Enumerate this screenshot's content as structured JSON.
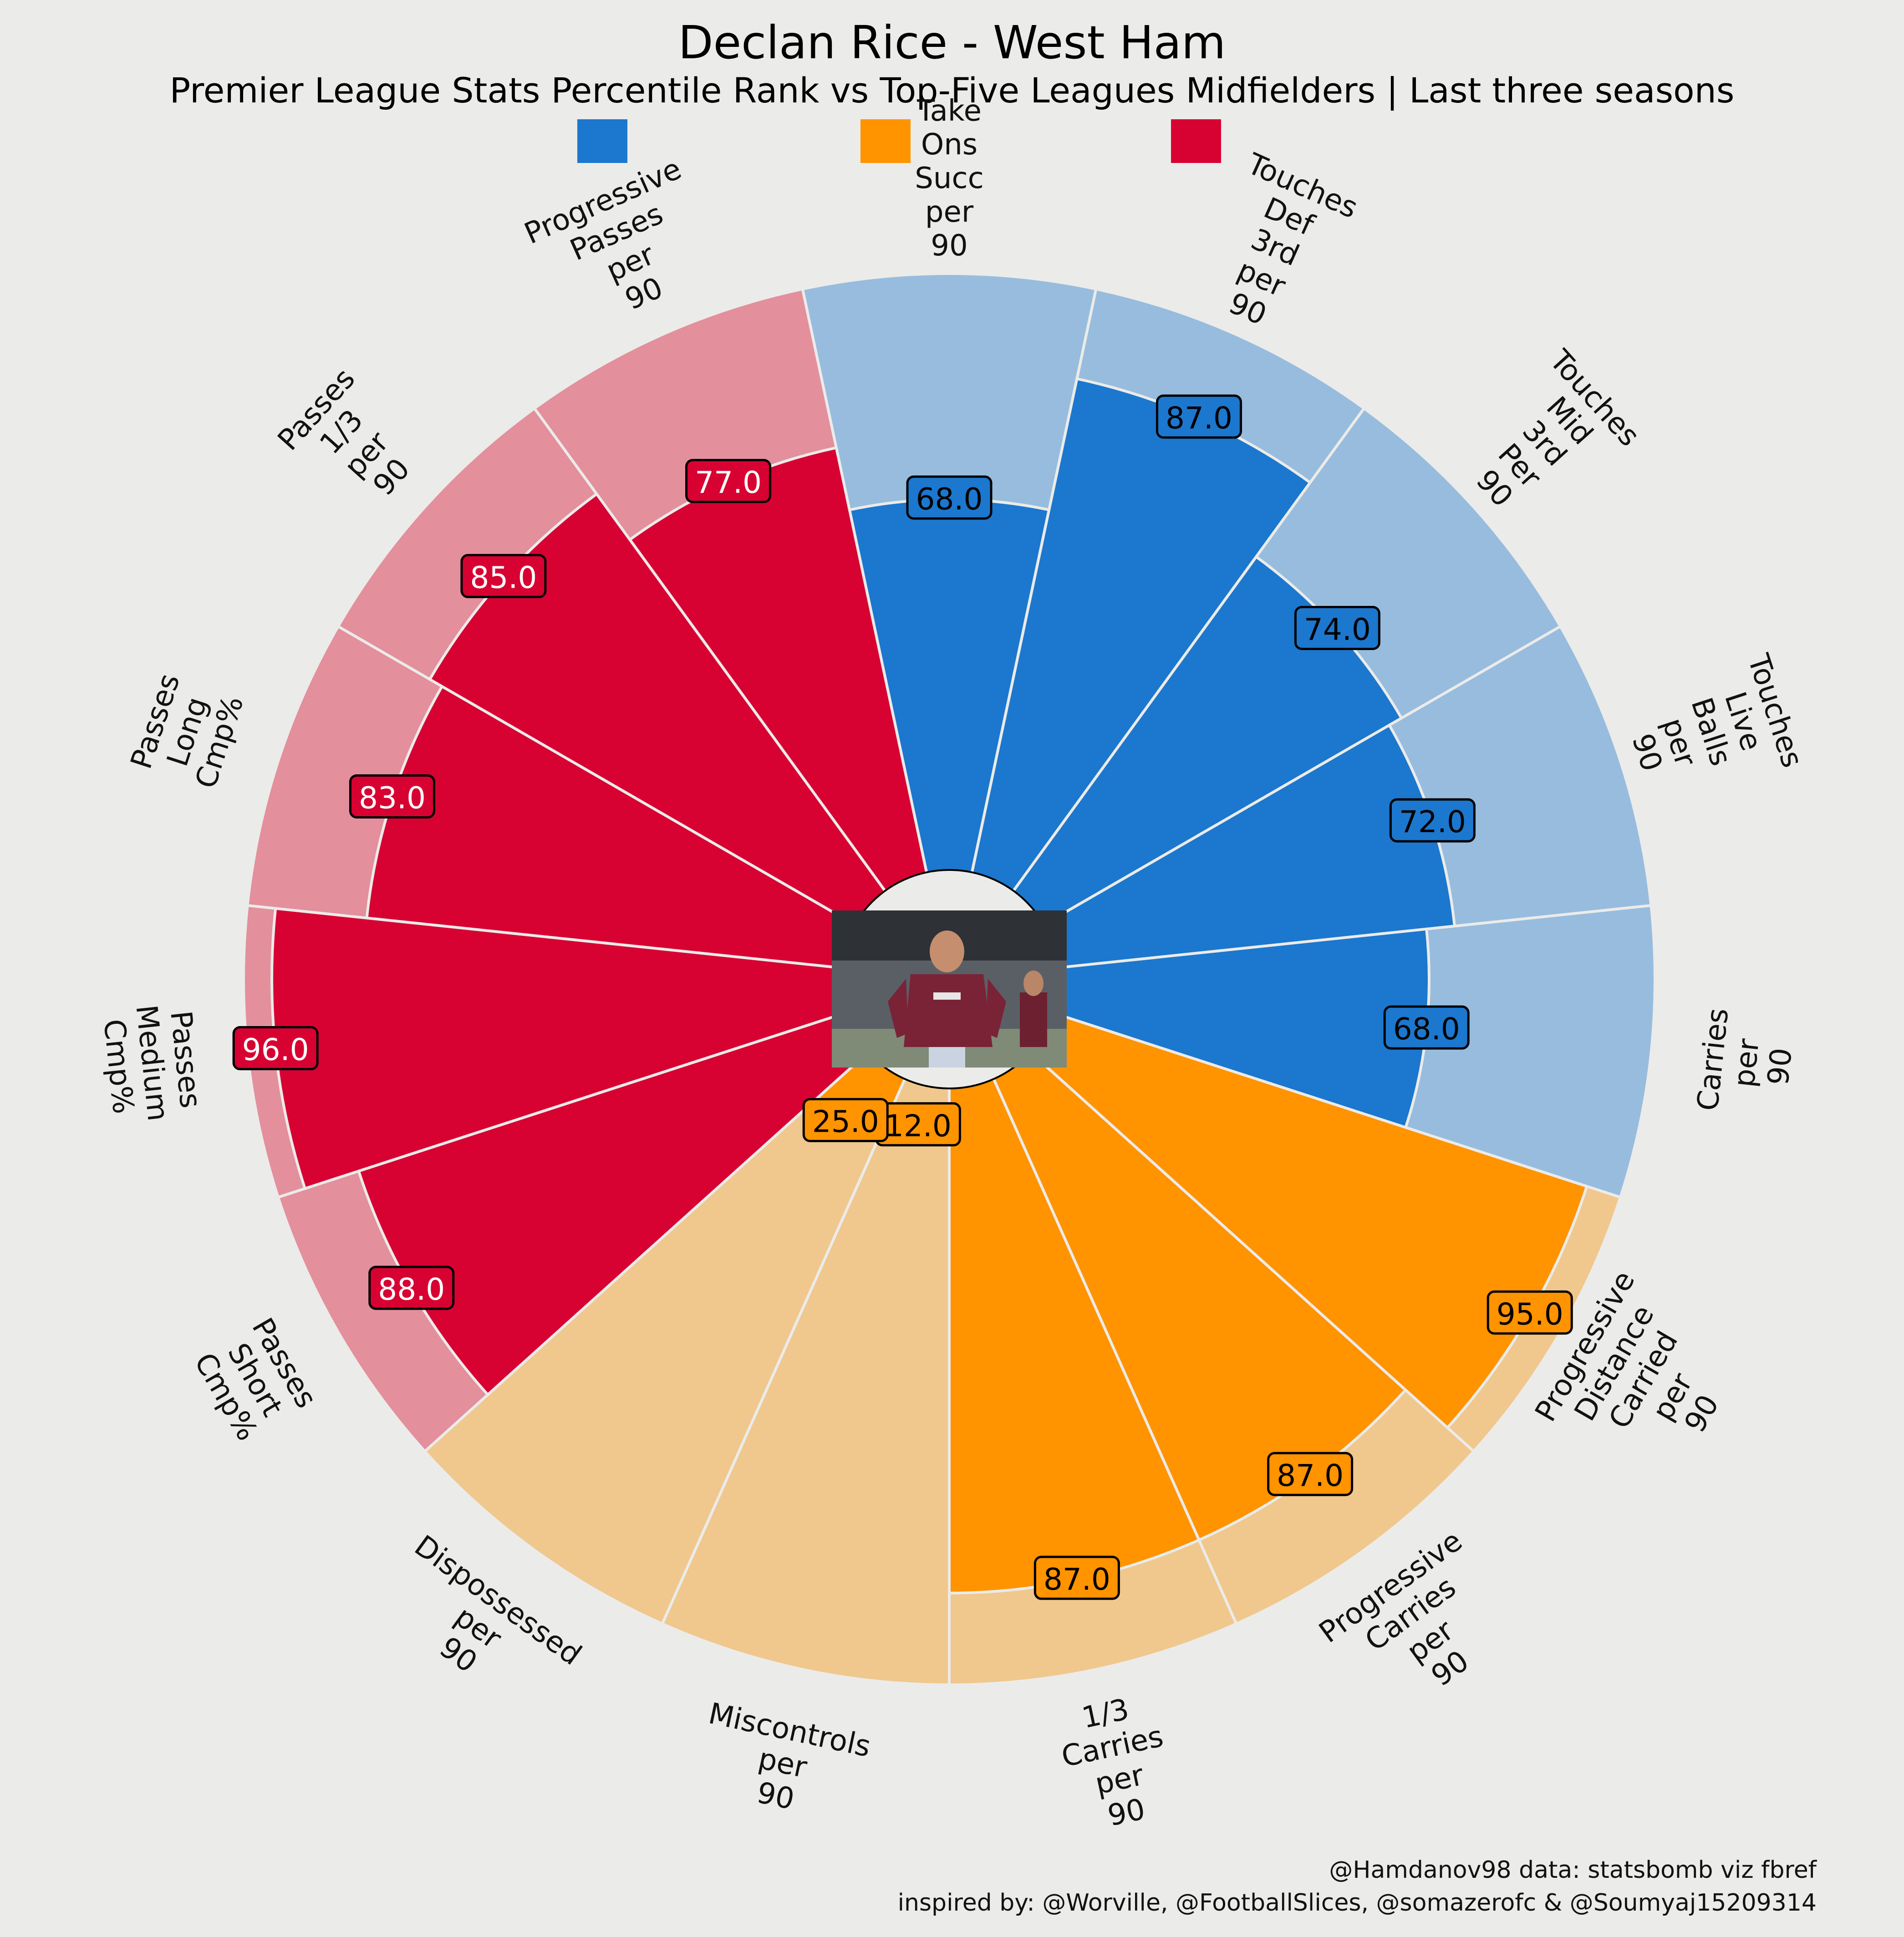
{
  "header": {
    "title": "Declan Rice - West Ham",
    "subtitle": "Premier League Stats Percentile Rank vs Top-Five Leagues Midfielders | Last three seasons"
  },
  "credits": {
    "line1": "@Hamdanov98 data: statsbomb viz fbref",
    "line2": "inspired by: @Worville, @FootballSlices, @somazerofc & @Soumyaj15209314"
  },
  "colors": {
    "background": "#EBEBE9",
    "blue": "#1C77CE",
    "blue_light": "#97BCDE",
    "orange": "#FF9300",
    "orange_light": "#F0C78D",
    "red": "#D70232",
    "red_light": "#E38F9C"
  },
  "center_image": {
    "icon": "player-photo"
  },
  "legend": [
    {
      "color": "#1C77CE",
      "label": ""
    },
    {
      "color": "#FF9300",
      "label": ""
    },
    {
      "color": "#D70232",
      "label": ""
    }
  ],
  "chart_data": {
    "type": "radial-bar",
    "value_range": [
      0,
      100
    ],
    "params": [
      {
        "label": "Take Ons Succ per 90",
        "value": 68.0,
        "group": "blue"
      },
      {
        "label": "Touches Def 3rd per 90",
        "value": 87.0,
        "group": "blue"
      },
      {
        "label": "Touches Mid 3rd Per 90",
        "value": 74.0,
        "group": "blue"
      },
      {
        "label": "Touches Live Balls per 90",
        "value": 72.0,
        "group": "blue"
      },
      {
        "label": "Carries per 90",
        "value": 68.0,
        "group": "blue"
      },
      {
        "label": "Progressive Distance Carried per 90",
        "value": 95.0,
        "group": "orange"
      },
      {
        "label": "Progressive Carries per 90",
        "value": 87.0,
        "group": "orange"
      },
      {
        "label": "1/3 Carries per 90",
        "value": 87.0,
        "group": "orange"
      },
      {
        "label": "Miscontrols per 90",
        "value": 12.0,
        "group": "orange"
      },
      {
        "label": "Dispossessed per 90",
        "value": 25.0,
        "group": "orange"
      },
      {
        "label": "Passes Short Cmp%",
        "value": 88.0,
        "group": "red"
      },
      {
        "label": "Passes Medium Cmp%",
        "value": 96.0,
        "group": "red"
      },
      {
        "label": "Passes Long Cmp%",
        "value": 83.0,
        "group": "red"
      },
      {
        "label": "Passes 1/3 per 90",
        "value": 85.0,
        "group": "red"
      },
      {
        "label": "Progressive Passes per 90",
        "value": 77.0,
        "group": "red"
      }
    ]
  }
}
